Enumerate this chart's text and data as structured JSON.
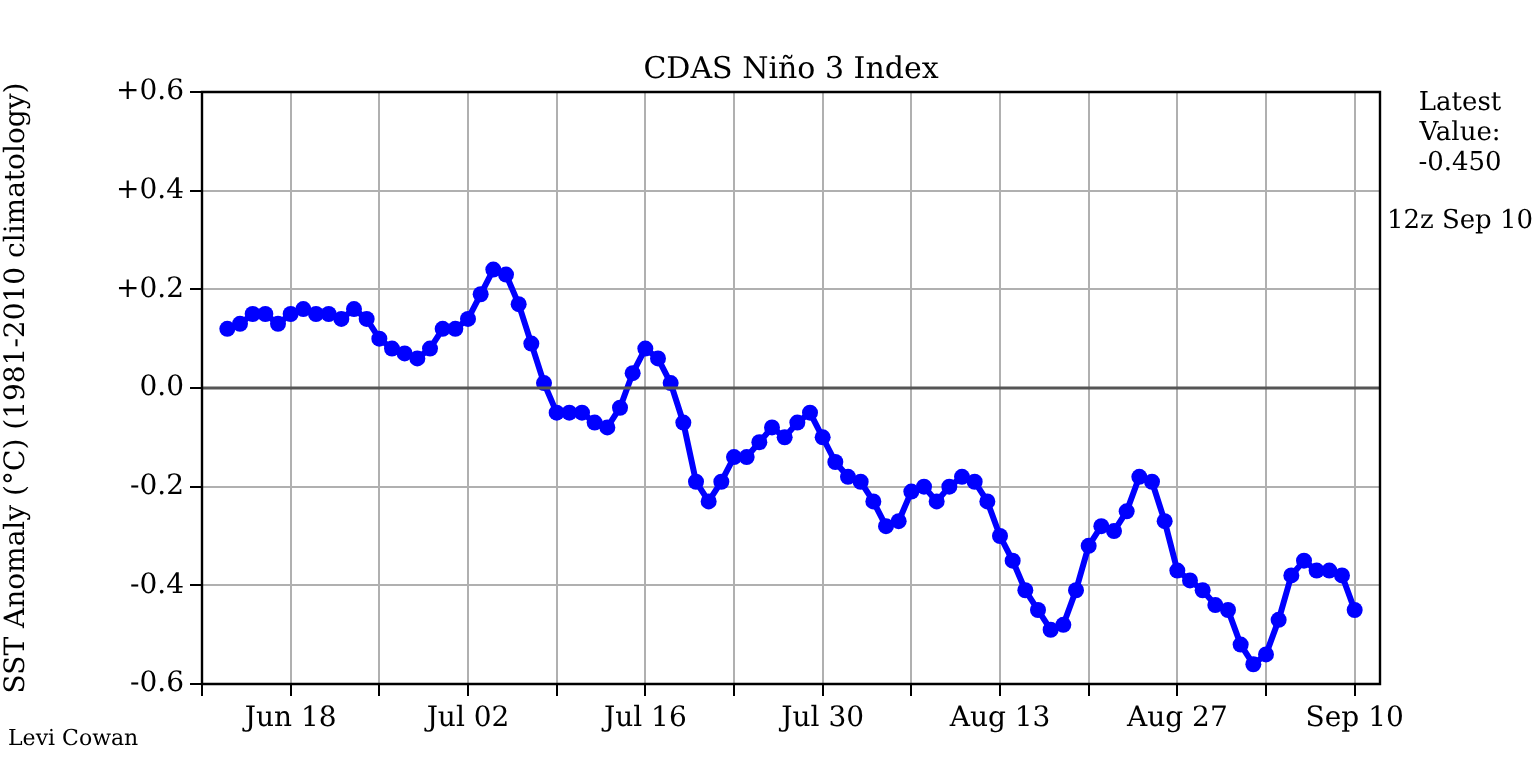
{
  "chart_data": {
    "type": "line",
    "title": "CDAS Niño 3 Index",
    "ylabel": "SST Anomaly (°C) (1981-2010 climatology)",
    "x": [
      "--06-13",
      "--06-14",
      "--06-15",
      "--06-16",
      "--06-17",
      "--06-18",
      "--06-19",
      "--06-20",
      "--06-21",
      "--06-22",
      "--06-23",
      "--06-24",
      "--06-25",
      "--06-26",
      "--06-27",
      "--06-28",
      "--06-29",
      "--06-30",
      "--07-01",
      "--07-02",
      "--07-03",
      "--07-04",
      "--07-05",
      "--07-06",
      "--07-07",
      "--07-08",
      "--07-09",
      "--07-10",
      "--07-11",
      "--07-12",
      "--07-13",
      "--07-14",
      "--07-15",
      "--07-16",
      "--07-17",
      "--07-18",
      "--07-19",
      "--07-20",
      "--07-21",
      "--07-22",
      "--07-23",
      "--07-24",
      "--07-25",
      "--07-26",
      "--07-27",
      "--07-28",
      "--07-29",
      "--07-30",
      "--07-31",
      "--08-01",
      "--08-02",
      "--08-03",
      "--08-04",
      "--08-05",
      "--08-06",
      "--08-07",
      "--08-08",
      "--08-09",
      "--08-10",
      "--08-11",
      "--08-12",
      "--08-13",
      "--08-14",
      "--08-15",
      "--08-16",
      "--08-17",
      "--08-18",
      "--08-19",
      "--08-20",
      "--08-21",
      "--08-22",
      "--08-23",
      "--08-24",
      "--08-25",
      "--08-26",
      "--08-27",
      "--08-28",
      "--08-29",
      "--08-30",
      "--08-31",
      "--09-01",
      "--09-02",
      "--09-03",
      "--09-04",
      "--09-05",
      "--09-06",
      "--09-07",
      "--09-08",
      "--09-09",
      "--09-10"
    ],
    "series": [
      {
        "color": "#0000ff",
        "values": [
          0.12,
          0.13,
          0.15,
          0.15,
          0.13,
          0.15,
          0.16,
          0.15,
          0.15,
          0.14,
          0.16,
          0.14,
          0.1,
          0.08,
          0.07,
          0.06,
          0.08,
          0.12,
          0.12,
          0.14,
          0.19,
          0.24,
          0.23,
          0.17,
          0.09,
          0.01,
          -0.05,
          -0.05,
          -0.05,
          -0.07,
          -0.08,
          -0.04,
          0.03,
          0.08,
          0.06,
          0.01,
          -0.07,
          -0.19,
          -0.23,
          -0.19,
          -0.14,
          -0.14,
          -0.11,
          -0.08,
          -0.1,
          -0.07,
          -0.05,
          -0.1,
          -0.15,
          -0.18,
          -0.19,
          -0.23,
          -0.28,
          -0.27,
          -0.21,
          -0.2,
          -0.23,
          -0.2,
          -0.18,
          -0.19,
          -0.23,
          -0.3,
          -0.35,
          -0.41,
          -0.45,
          -0.49,
          -0.48,
          -0.41,
          -0.32,
          -0.28,
          -0.29,
          -0.25,
          -0.18,
          -0.19,
          -0.27,
          -0.37,
          -0.39,
          -0.41,
          -0.44,
          -0.45,
          -0.52,
          -0.56,
          -0.54,
          -0.47,
          -0.38,
          -0.35,
          -0.37,
          -0.37,
          -0.38,
          -0.45
        ]
      }
    ],
    "xlim": [
      "--06-11",
      "--09-12"
    ],
    "xticks": [
      {
        "value": "--06-11",
        "label": null
      },
      {
        "value": "--06-18",
        "label": "Jun 18"
      },
      {
        "value": "--06-25",
        "label": null
      },
      {
        "value": "--07-02",
        "label": "Jul 02"
      },
      {
        "value": "--07-09",
        "label": null
      },
      {
        "value": "--07-16",
        "label": "Jul 16"
      },
      {
        "value": "--07-23",
        "label": null
      },
      {
        "value": "--07-30",
        "label": "Jul 30"
      },
      {
        "value": "--08-06",
        "label": null
      },
      {
        "value": "--08-13",
        "label": "Aug 13"
      },
      {
        "value": "--08-20",
        "label": null
      },
      {
        "value": "--08-27",
        "label": "Aug 27"
      },
      {
        "value": "--09-03",
        "label": null
      },
      {
        "value": "--09-10",
        "label": "Sep 10"
      }
    ],
    "ylim": [
      -0.6,
      0.6
    ],
    "yticks": [
      {
        "value": -0.6,
        "label": "-0.6"
      },
      {
        "value": -0.4,
        "label": "-0.4"
      },
      {
        "value": -0.2,
        "label": "-0.2"
      },
      {
        "value": 0,
        "label": "0.0"
      },
      {
        "value": 0.2,
        "label": "+0.2"
      },
      {
        "value": 0.4,
        "label": "+0.4"
      },
      {
        "value": 0.6,
        "label": "+0.6"
      }
    ],
    "ref_lines": [
      {
        "axis": "y",
        "value": 0,
        "color": "#555555"
      }
    ],
    "annotations": [
      "Latest Value: -0.450",
      "12z Sep 10",
      "Levi Cowan"
    ],
    "grid": true,
    "legend": false,
    "marker": "circle",
    "line_style": "solid"
  }
}
